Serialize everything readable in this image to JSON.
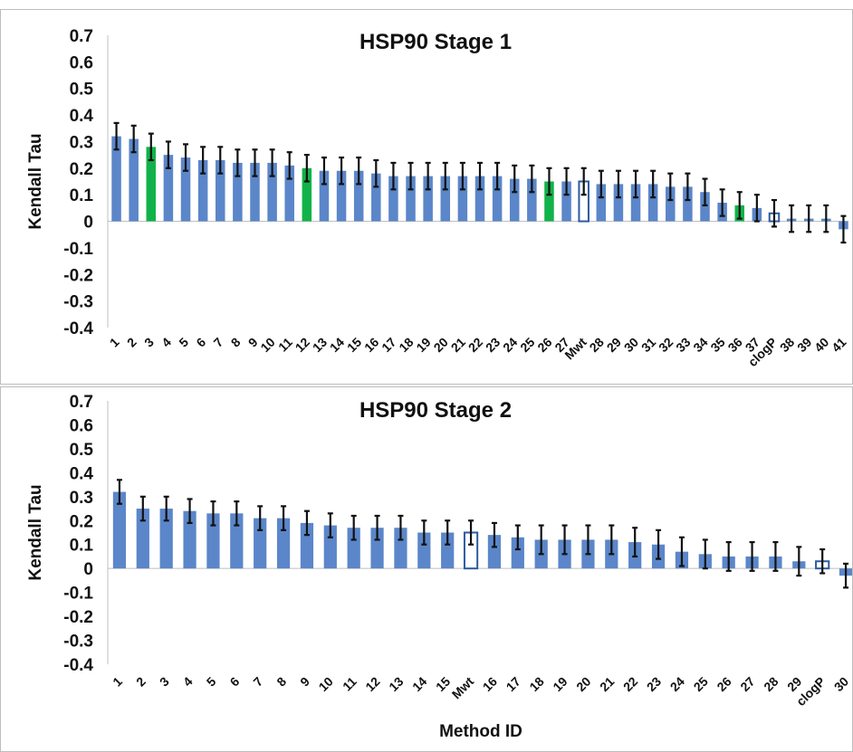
{
  "chart_data": [
    {
      "type": "bar",
      "title": "HSP90 Stage 1",
      "ylabel": "Kendall Tau",
      "xlabel": "",
      "ylim": [
        -0.4,
        0.7
      ],
      "yticks": [
        "0.7",
        "0.6",
        "0.5",
        "0.4",
        "0.3",
        "0.2",
        "0.1",
        "0",
        "-0.1",
        "-0.2",
        "-0.3",
        "-0.4"
      ],
      "categories": [
        "1",
        "2",
        "3",
        "4",
        "5",
        "6",
        "7",
        "8",
        "9",
        "10",
        "11",
        "12",
        "13",
        "14",
        "15",
        "16",
        "17",
        "18",
        "19",
        "20",
        "21",
        "22",
        "23",
        "24",
        "25",
        "26",
        "27",
        "Mwt",
        "28",
        "29",
        "30",
        "31",
        "32",
        "33",
        "34",
        "35",
        "36",
        "37",
        "clogP",
        "38",
        "39",
        "40",
        "41"
      ],
      "values": [
        0.32,
        0.31,
        0.28,
        0.25,
        0.24,
        0.23,
        0.23,
        0.22,
        0.22,
        0.22,
        0.21,
        0.2,
        0.19,
        0.19,
        0.19,
        0.18,
        0.17,
        0.17,
        0.17,
        0.17,
        0.17,
        0.17,
        0.17,
        0.16,
        0.16,
        0.15,
        0.15,
        0.15,
        0.14,
        0.14,
        0.14,
        0.14,
        0.13,
        0.13,
        0.11,
        0.07,
        0.06,
        0.05,
        0.03,
        0.01,
        0.01,
        0.01,
        -0.03
      ],
      "errors": [
        0.05,
        0.05,
        0.05,
        0.05,
        0.05,
        0.05,
        0.05,
        0.05,
        0.05,
        0.05,
        0.05,
        0.05,
        0.05,
        0.05,
        0.05,
        0.05,
        0.05,
        0.05,
        0.05,
        0.05,
        0.05,
        0.05,
        0.05,
        0.05,
        0.05,
        0.05,
        0.05,
        0.05,
        0.05,
        0.05,
        0.05,
        0.05,
        0.05,
        0.05,
        0.05,
        0.05,
        0.05,
        0.05,
        0.05,
        0.05,
        0.05,
        0.05,
        0.05
      ],
      "bar_styles": [
        "blue",
        "blue",
        "green",
        "blue",
        "blue",
        "blue",
        "blue",
        "blue",
        "blue",
        "blue",
        "blue",
        "green",
        "blue",
        "blue",
        "blue",
        "blue",
        "blue",
        "blue",
        "blue",
        "blue",
        "blue",
        "blue",
        "blue",
        "blue",
        "blue",
        "green",
        "blue",
        "hollow",
        "blue",
        "blue",
        "blue",
        "blue",
        "blue",
        "blue",
        "blue",
        "blue",
        "green",
        "blue",
        "hollow",
        "blue",
        "blue",
        "blue",
        "blue"
      ],
      "colors": {
        "blue": "#5b86c9",
        "green": "#12b24a",
        "hollow": "#ffffff",
        "hollow_edge": "#2d5a9e",
        "error": "#111111"
      },
      "grid": false,
      "legend": "none"
    },
    {
      "type": "bar",
      "title": "HSP90 Stage 2",
      "ylabel": "Kendall Tau",
      "xlabel": "Method ID",
      "ylim": [
        -0.4,
        0.7
      ],
      "yticks": [
        "0.7",
        "0.6",
        "0.5",
        "0.4",
        "0.3",
        "0.2",
        "0.1",
        "0",
        "-0.1",
        "-0.2",
        "-0.3",
        "-0.4"
      ],
      "categories": [
        "1",
        "2",
        "3",
        "4",
        "5",
        "6",
        "7",
        "8",
        "9",
        "10",
        "11",
        "12",
        "13",
        "14",
        "15",
        "Mwt",
        "16",
        "17",
        "18",
        "19",
        "20",
        "21",
        "22",
        "23",
        "24",
        "25",
        "26",
        "27",
        "28",
        "29",
        "clogP",
        "30"
      ],
      "values": [
        0.32,
        0.25,
        0.25,
        0.24,
        0.23,
        0.23,
        0.21,
        0.21,
        0.19,
        0.18,
        0.17,
        0.17,
        0.17,
        0.15,
        0.15,
        0.15,
        0.14,
        0.13,
        0.12,
        0.12,
        0.12,
        0.12,
        0.11,
        0.1,
        0.07,
        0.06,
        0.05,
        0.05,
        0.05,
        0.03,
        0.03,
        -0.03
      ],
      "errors": [
        0.05,
        0.05,
        0.05,
        0.05,
        0.05,
        0.05,
        0.05,
        0.05,
        0.05,
        0.05,
        0.05,
        0.05,
        0.05,
        0.05,
        0.05,
        0.05,
        0.05,
        0.05,
        0.06,
        0.06,
        0.06,
        0.06,
        0.06,
        0.06,
        0.06,
        0.06,
        0.06,
        0.06,
        0.06,
        0.06,
        0.05,
        0.05
      ],
      "bar_styles": [
        "blue",
        "blue",
        "blue",
        "blue",
        "blue",
        "blue",
        "blue",
        "blue",
        "blue",
        "blue",
        "blue",
        "blue",
        "blue",
        "blue",
        "blue",
        "hollow",
        "blue",
        "blue",
        "blue",
        "blue",
        "blue",
        "blue",
        "blue",
        "blue",
        "blue",
        "blue",
        "blue",
        "blue",
        "blue",
        "blue",
        "hollow",
        "blue"
      ],
      "colors": {
        "blue": "#5b86c9",
        "green": "#12b24a",
        "hollow": "#ffffff",
        "hollow_edge": "#2d5a9e",
        "error": "#111111"
      },
      "grid": false,
      "legend": "none"
    }
  ]
}
